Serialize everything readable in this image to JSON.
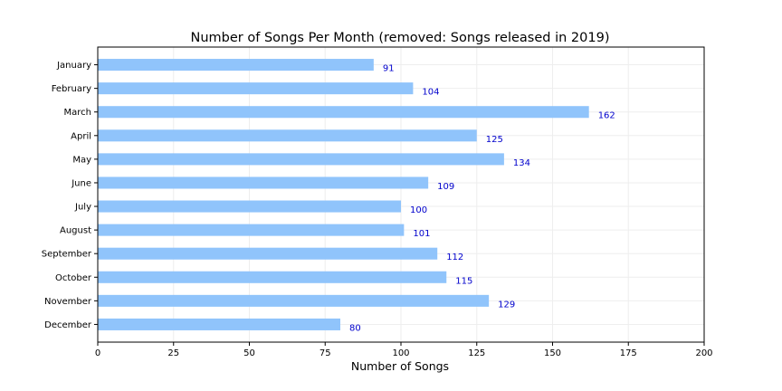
{
  "chart_data": {
    "type": "bar",
    "orientation": "horizontal",
    "title": "Number of Songs Per Month (removed: Songs released in 2019)",
    "xlabel": "Number of Songs",
    "ylabel": "",
    "categories": [
      "January",
      "February",
      "March",
      "April",
      "May",
      "June",
      "July",
      "August",
      "September",
      "October",
      "November",
      "December"
    ],
    "values": [
      91,
      104,
      162,
      125,
      134,
      109,
      100,
      101,
      112,
      115,
      129,
      80
    ],
    "xlim": [
      0,
      200
    ],
    "xticks": [
      0,
      25,
      50,
      75,
      100,
      125,
      150,
      175,
      200
    ],
    "grid": true,
    "data_labels": true,
    "colors": {
      "bar": "#90c4fb",
      "value_label": "#0000cc",
      "grid": "#eeeeee",
      "axis": "#000000"
    }
  }
}
